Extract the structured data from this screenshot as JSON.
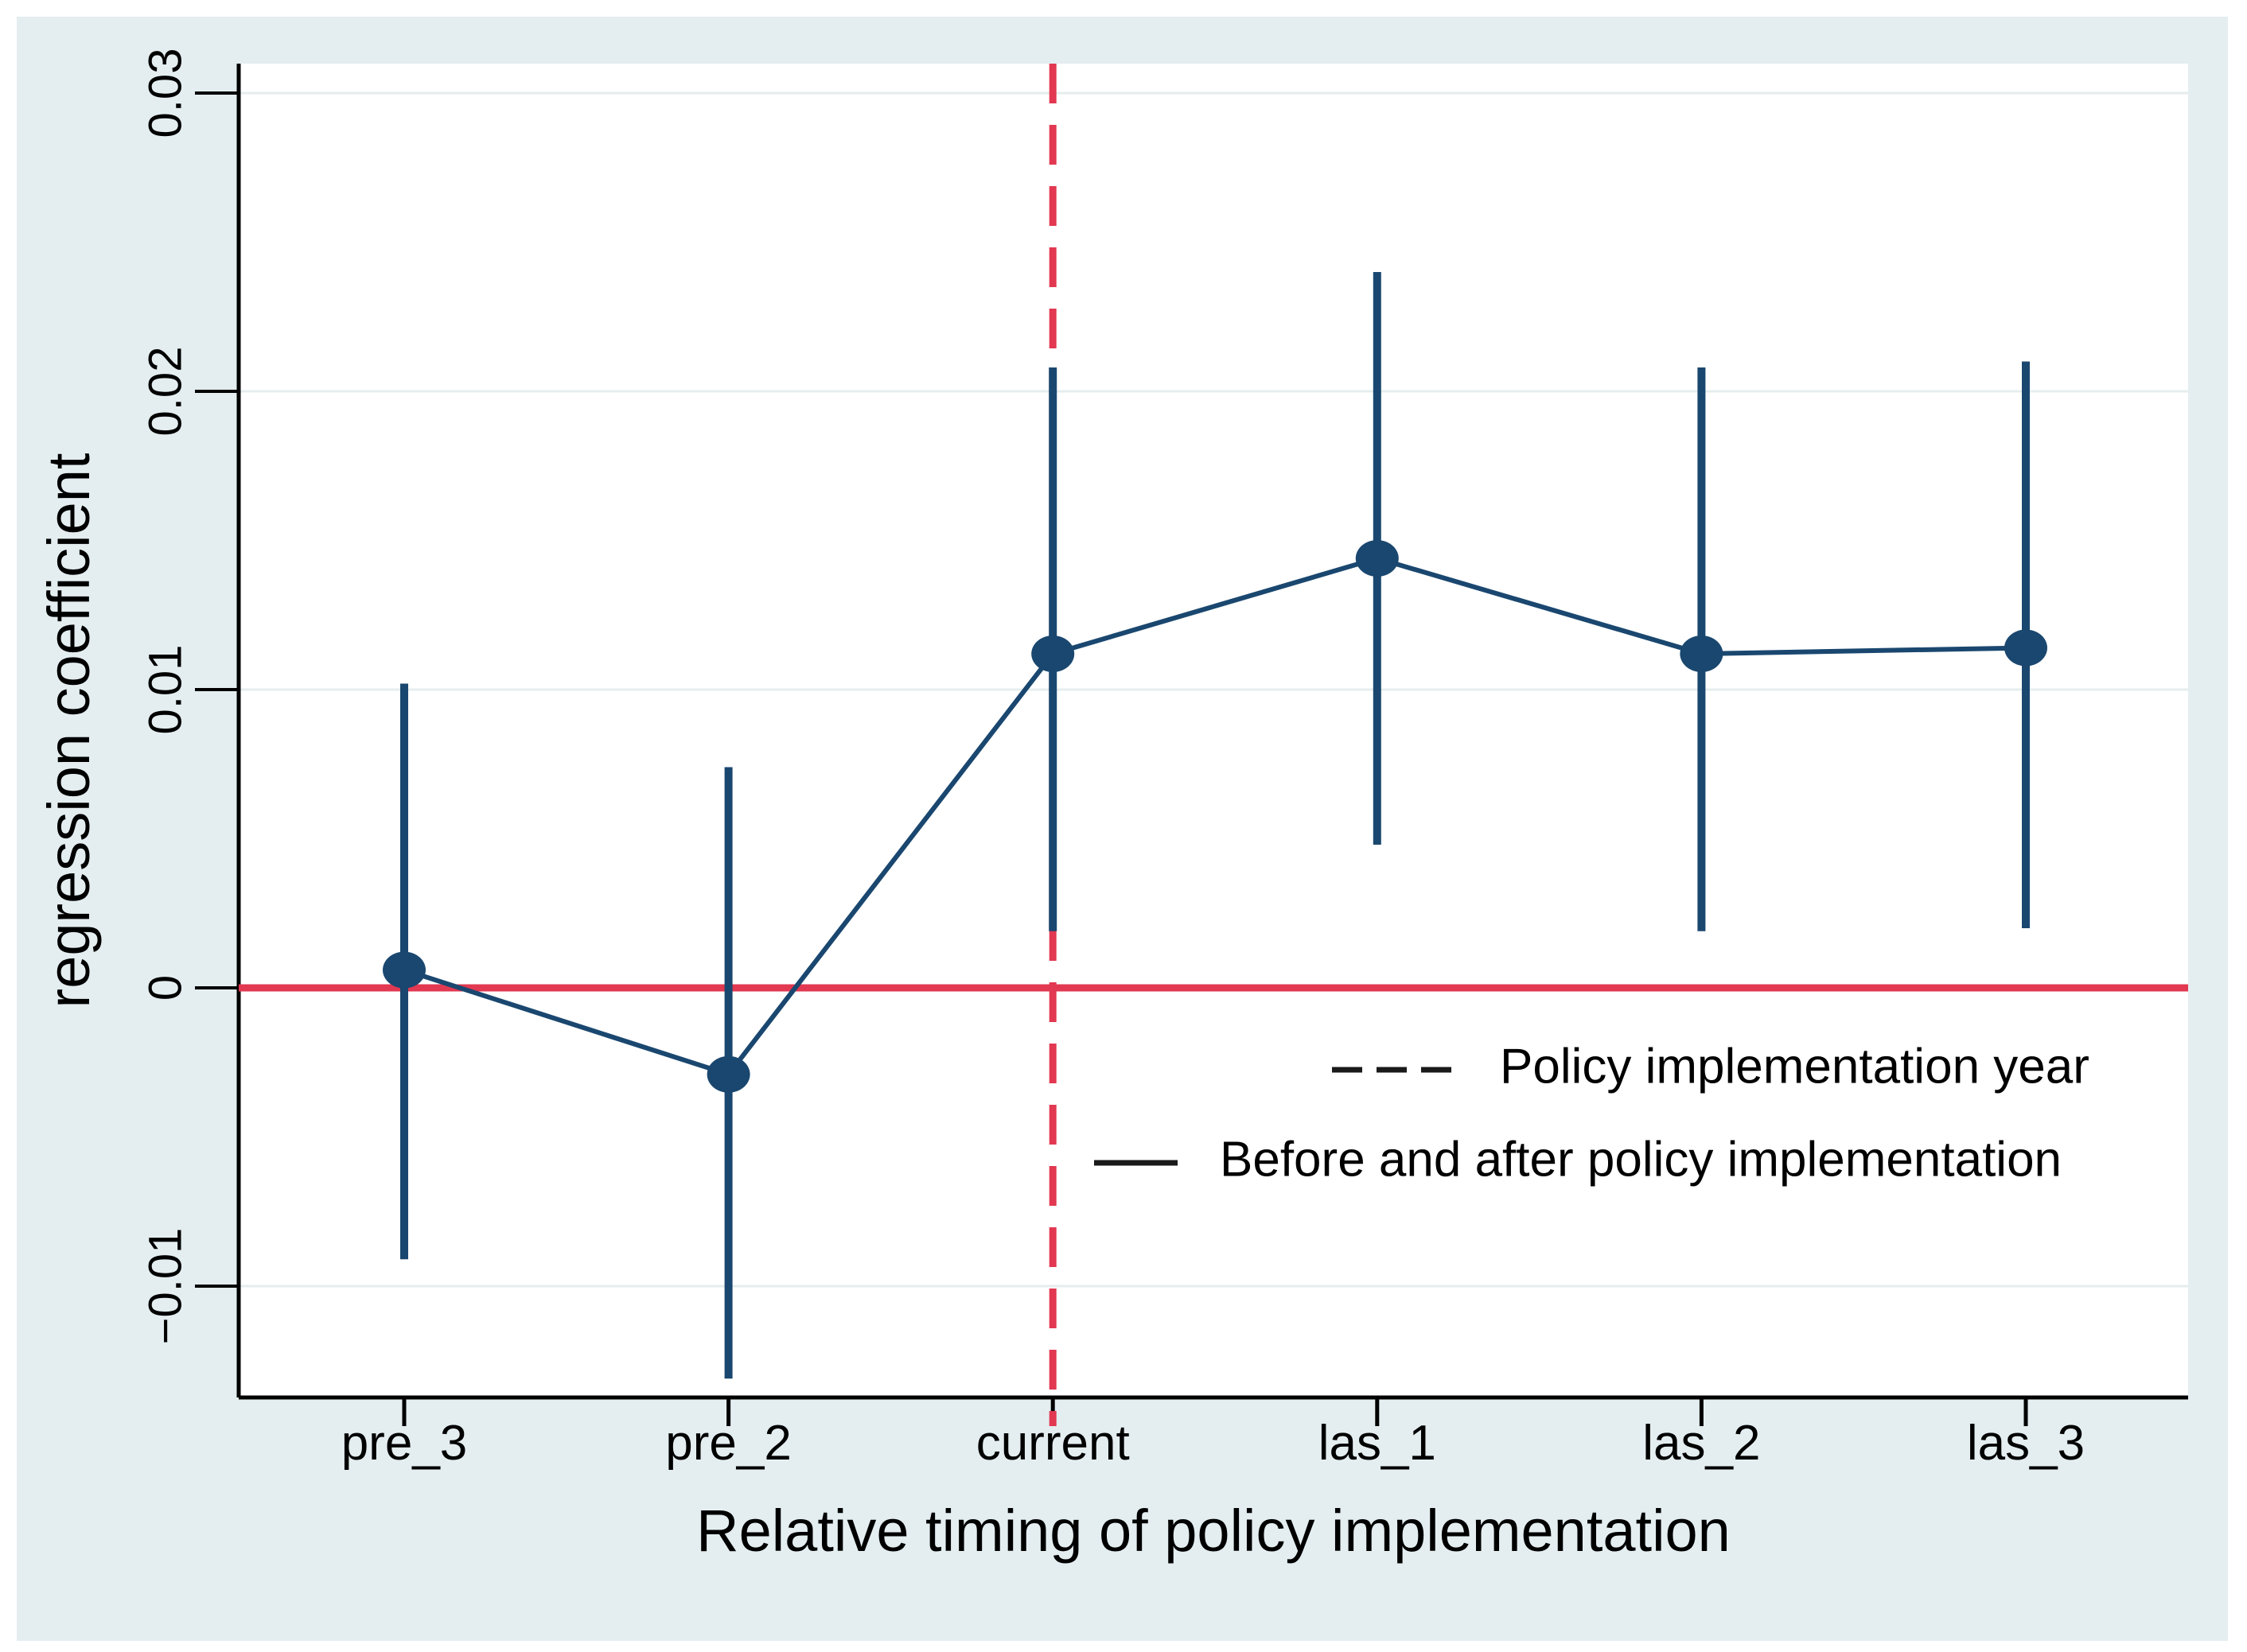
{
  "chart_data": {
    "type": "line",
    "title": "",
    "xlabel": "Relative timing of policy implementation",
    "ylabel": "regression coefficient",
    "categories": [
      "pre_3",
      "pre_2",
      "current",
      "las_1",
      "las_2",
      "las_3"
    ],
    "series": [
      {
        "name": "Before and after policy implementation",
        "values": [
          0.0006,
          -0.0029,
          0.0112,
          0.0144,
          0.0112,
          0.0114
        ],
        "ci_low": [
          -0.0091,
          -0.0131,
          0.0019,
          0.0048,
          0.0019,
          0.002
        ],
        "ci_high": [
          0.0102,
          0.0074,
          0.0208,
          0.024,
          0.0208,
          0.021
        ]
      }
    ],
    "yticks": [
      0.03,
      0.02,
      0.01,
      0,
      -0.01
    ],
    "ytick_labels": [
      "0.03",
      "0.02",
      "0.01",
      "0",
      "−0.01"
    ],
    "ylim": [
      -0.0138,
      0.031
    ],
    "grid": true,
    "reference_lines": {
      "horizontal_at_value": 0,
      "vertical_at_category": "current"
    },
    "legend": {
      "position": "inside-right-below-zero-line",
      "items": [
        {
          "label": "Policy implementation year",
          "style": "dashed"
        },
        {
          "label": "Before and after policy implementation",
          "style": "solid"
        }
      ]
    },
    "colors": {
      "series": "#1a476f",
      "reference": "#e23851",
      "background": "#e4eef1",
      "plot_background": "#ffffff",
      "gridline": "#e6edee",
      "axis": "#000000",
      "legend_sample": "#1a1a1a"
    }
  }
}
